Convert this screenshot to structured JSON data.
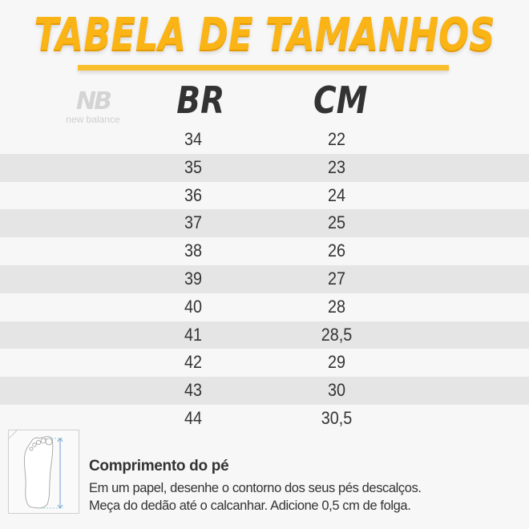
{
  "title": "TABELA DE TAMANHOS",
  "brand": {
    "logo_mark": "NB",
    "logo_text": "new balance"
  },
  "columns": [
    "BR",
    "CM"
  ],
  "rows": [
    [
      "34",
      "22"
    ],
    [
      "35",
      "23"
    ],
    [
      "36",
      "24"
    ],
    [
      "37",
      "25"
    ],
    [
      "38",
      "26"
    ],
    [
      "39",
      "27"
    ],
    [
      "40",
      "28"
    ],
    [
      "41",
      "28,5"
    ],
    [
      "42",
      "29"
    ],
    [
      "43",
      "30"
    ],
    [
      "44",
      "30,5"
    ]
  ],
  "footer": {
    "heading": "Comprimento do pé",
    "lines": [
      "Em um papel, desenhe o contorno dos seus pés descalços.",
      "Meça do dedão até o calcanhar. Adicione 0,5 cm de folga."
    ],
    "icon": "foot-measure-icon"
  },
  "colors": {
    "accent": "#fbb416",
    "shade": "#e5e5e5",
    "text": "#333333"
  }
}
